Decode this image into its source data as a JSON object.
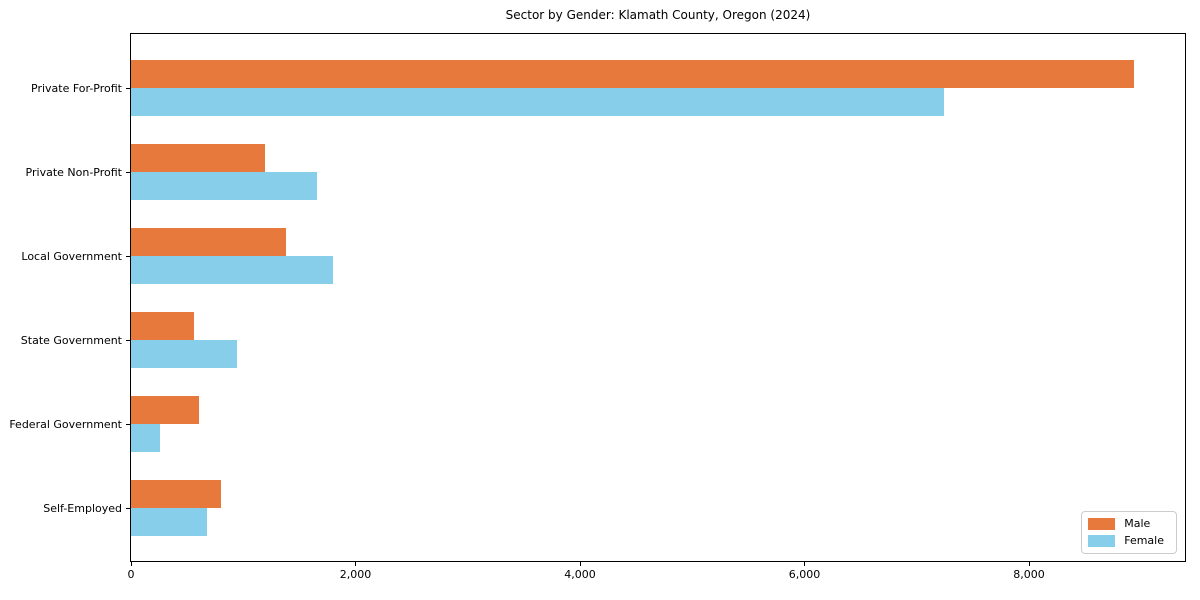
{
  "chart_data": {
    "type": "bar",
    "orientation": "horizontal",
    "title": "Sector by Gender: Klamath County, Oregon (2024)",
    "categories": [
      "Private For-Profit",
      "Private Non-Profit",
      "Local Government",
      "State Government",
      "Federal Government",
      "Self-Employed"
    ],
    "series": [
      {
        "name": "Male",
        "color": "#E8793D",
        "values": [
          8940,
          1190,
          1380,
          565,
          610,
          805
        ]
      },
      {
        "name": "Female",
        "color": "#87CEEB",
        "values": [
          7240,
          1660,
          1800,
          945,
          260,
          680
        ]
      }
    ],
    "xlabel": "",
    "ylabel": "",
    "xlim": [
      0,
      9390
    ],
    "xticks": {
      "values": [
        0,
        2000,
        4000,
        6000,
        8000
      ],
      "labels": [
        "0",
        "2,000",
        "4,000",
        "6,000",
        "8,000"
      ]
    },
    "grid": false,
    "legend": {
      "position": "lower right",
      "entries": [
        "Male",
        "Female"
      ]
    },
    "colors": {
      "male": "#E8793D",
      "female": "#87CEEB",
      "spine": "#000000",
      "legend_border": "#cccccc"
    }
  }
}
